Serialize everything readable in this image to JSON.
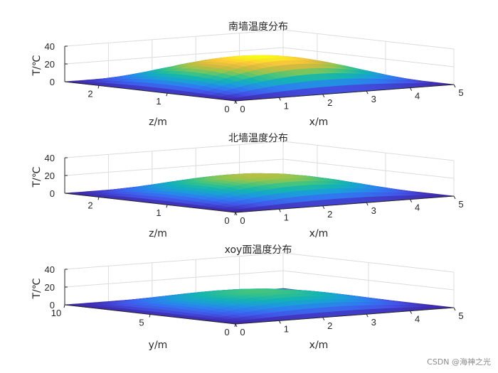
{
  "chart_data": [
    {
      "type": "surface",
      "title": "南墙温度分布",
      "xlabel": "x/m",
      "ylabel": "z/m",
      "zlabel": "T/℃",
      "xlim": [
        0,
        5
      ],
      "ylim": [
        0,
        2.5
      ],
      "zlim": [
        0,
        40
      ],
      "xticks": [
        0,
        1,
        2,
        3,
        4,
        5
      ],
      "yticks": [
        0,
        1,
        2
      ],
      "zticks": [
        0,
        20,
        40
      ],
      "peak_temperature": 30,
      "grid": true,
      "colormap": "parula"
    },
    {
      "type": "surface",
      "title": "北墙温度分布",
      "xlabel": "x/m",
      "ylabel": "z/m",
      "zlabel": "T/℃",
      "xlim": [
        0,
        5
      ],
      "ylim": [
        0,
        2.5
      ],
      "zlim": [
        0,
        40
      ],
      "xticks": [
        0,
        1,
        2,
        3,
        4,
        5
      ],
      "yticks": [
        0,
        1,
        2
      ],
      "zticks": [
        0,
        20,
        40
      ],
      "peak_temperature": 22,
      "grid": true,
      "colormap": "parula"
    },
    {
      "type": "surface",
      "title": "xoy面温度分布",
      "xlabel": "x/m",
      "ylabel": "y/m",
      "zlabel": "T/℃",
      "xlim": [
        0,
        5
      ],
      "ylim": [
        0,
        10
      ],
      "zlim": [
        0,
        40
      ],
      "xticks": [
        0,
        1,
        2,
        3,
        4,
        5
      ],
      "yticks": [
        0,
        5,
        10
      ],
      "zticks": [
        0,
        20,
        40
      ],
      "peak_temperature": 17,
      "grid": true,
      "colormap": "parula"
    }
  ],
  "watermark": "CSDN @海神之光",
  "colors": {
    "parula": [
      "#3e26a8",
      "#4354e8",
      "#2f7bf1",
      "#1b9ed9",
      "#14b5b0",
      "#3fc482",
      "#95c54e",
      "#d4ba3e",
      "#fcc83a",
      "#f9fb15"
    ],
    "grid": "#dcdcdc",
    "axis": "#262626"
  }
}
